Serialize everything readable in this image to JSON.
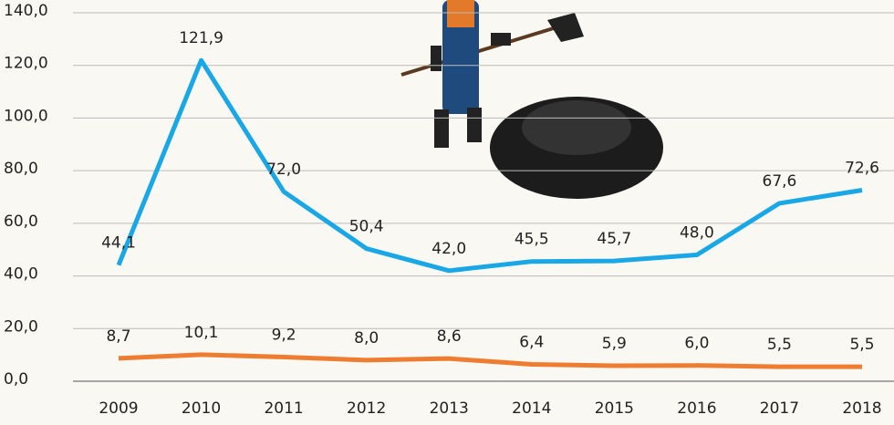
{
  "chart_data": {
    "type": "line",
    "categories": [
      "2009",
      "2010",
      "2011",
      "2012",
      "2013",
      "2014",
      "2015",
      "2016",
      "2017",
      "2018"
    ],
    "series": [
      {
        "color": "#1aa7e6",
        "values": [
          44.1,
          121.9,
          72.0,
          50.4,
          42.0,
          45.5,
          45.7,
          48.0,
          67.6,
          72.6
        ],
        "value_labels": [
          "44,1",
          "121,9",
          "72,0",
          "50,4",
          "42,0",
          "45,5",
          "45,7",
          "48,0",
          "67,6",
          "72,6"
        ]
      },
      {
        "color": "#ee7d31",
        "values": [
          8.7,
          10.1,
          9.2,
          8.0,
          8.6,
          6.4,
          5.9,
          6.0,
          5.5,
          5.5
        ],
        "value_labels": [
          "8,7",
          "10,1",
          "9,2",
          "8,0",
          "8,6",
          "6,4",
          "5,9",
          "6,0",
          "5,5",
          "5,5"
        ]
      }
    ],
    "ylim": [
      0,
      140
    ],
    "yticks": [
      {
        "value": 0,
        "label": "0,0"
      },
      {
        "value": 20,
        "label": "20,0"
      },
      {
        "value": 40,
        "label": "40,0"
      },
      {
        "value": 60,
        "label": "60,0"
      },
      {
        "value": 80,
        "label": "80,0"
      },
      {
        "value": 100,
        "label": "100,0"
      },
      {
        "value": 120,
        "label": "120,0"
      },
      {
        "value": 140,
        "label": "140,0"
      }
    ],
    "grid": true
  }
}
